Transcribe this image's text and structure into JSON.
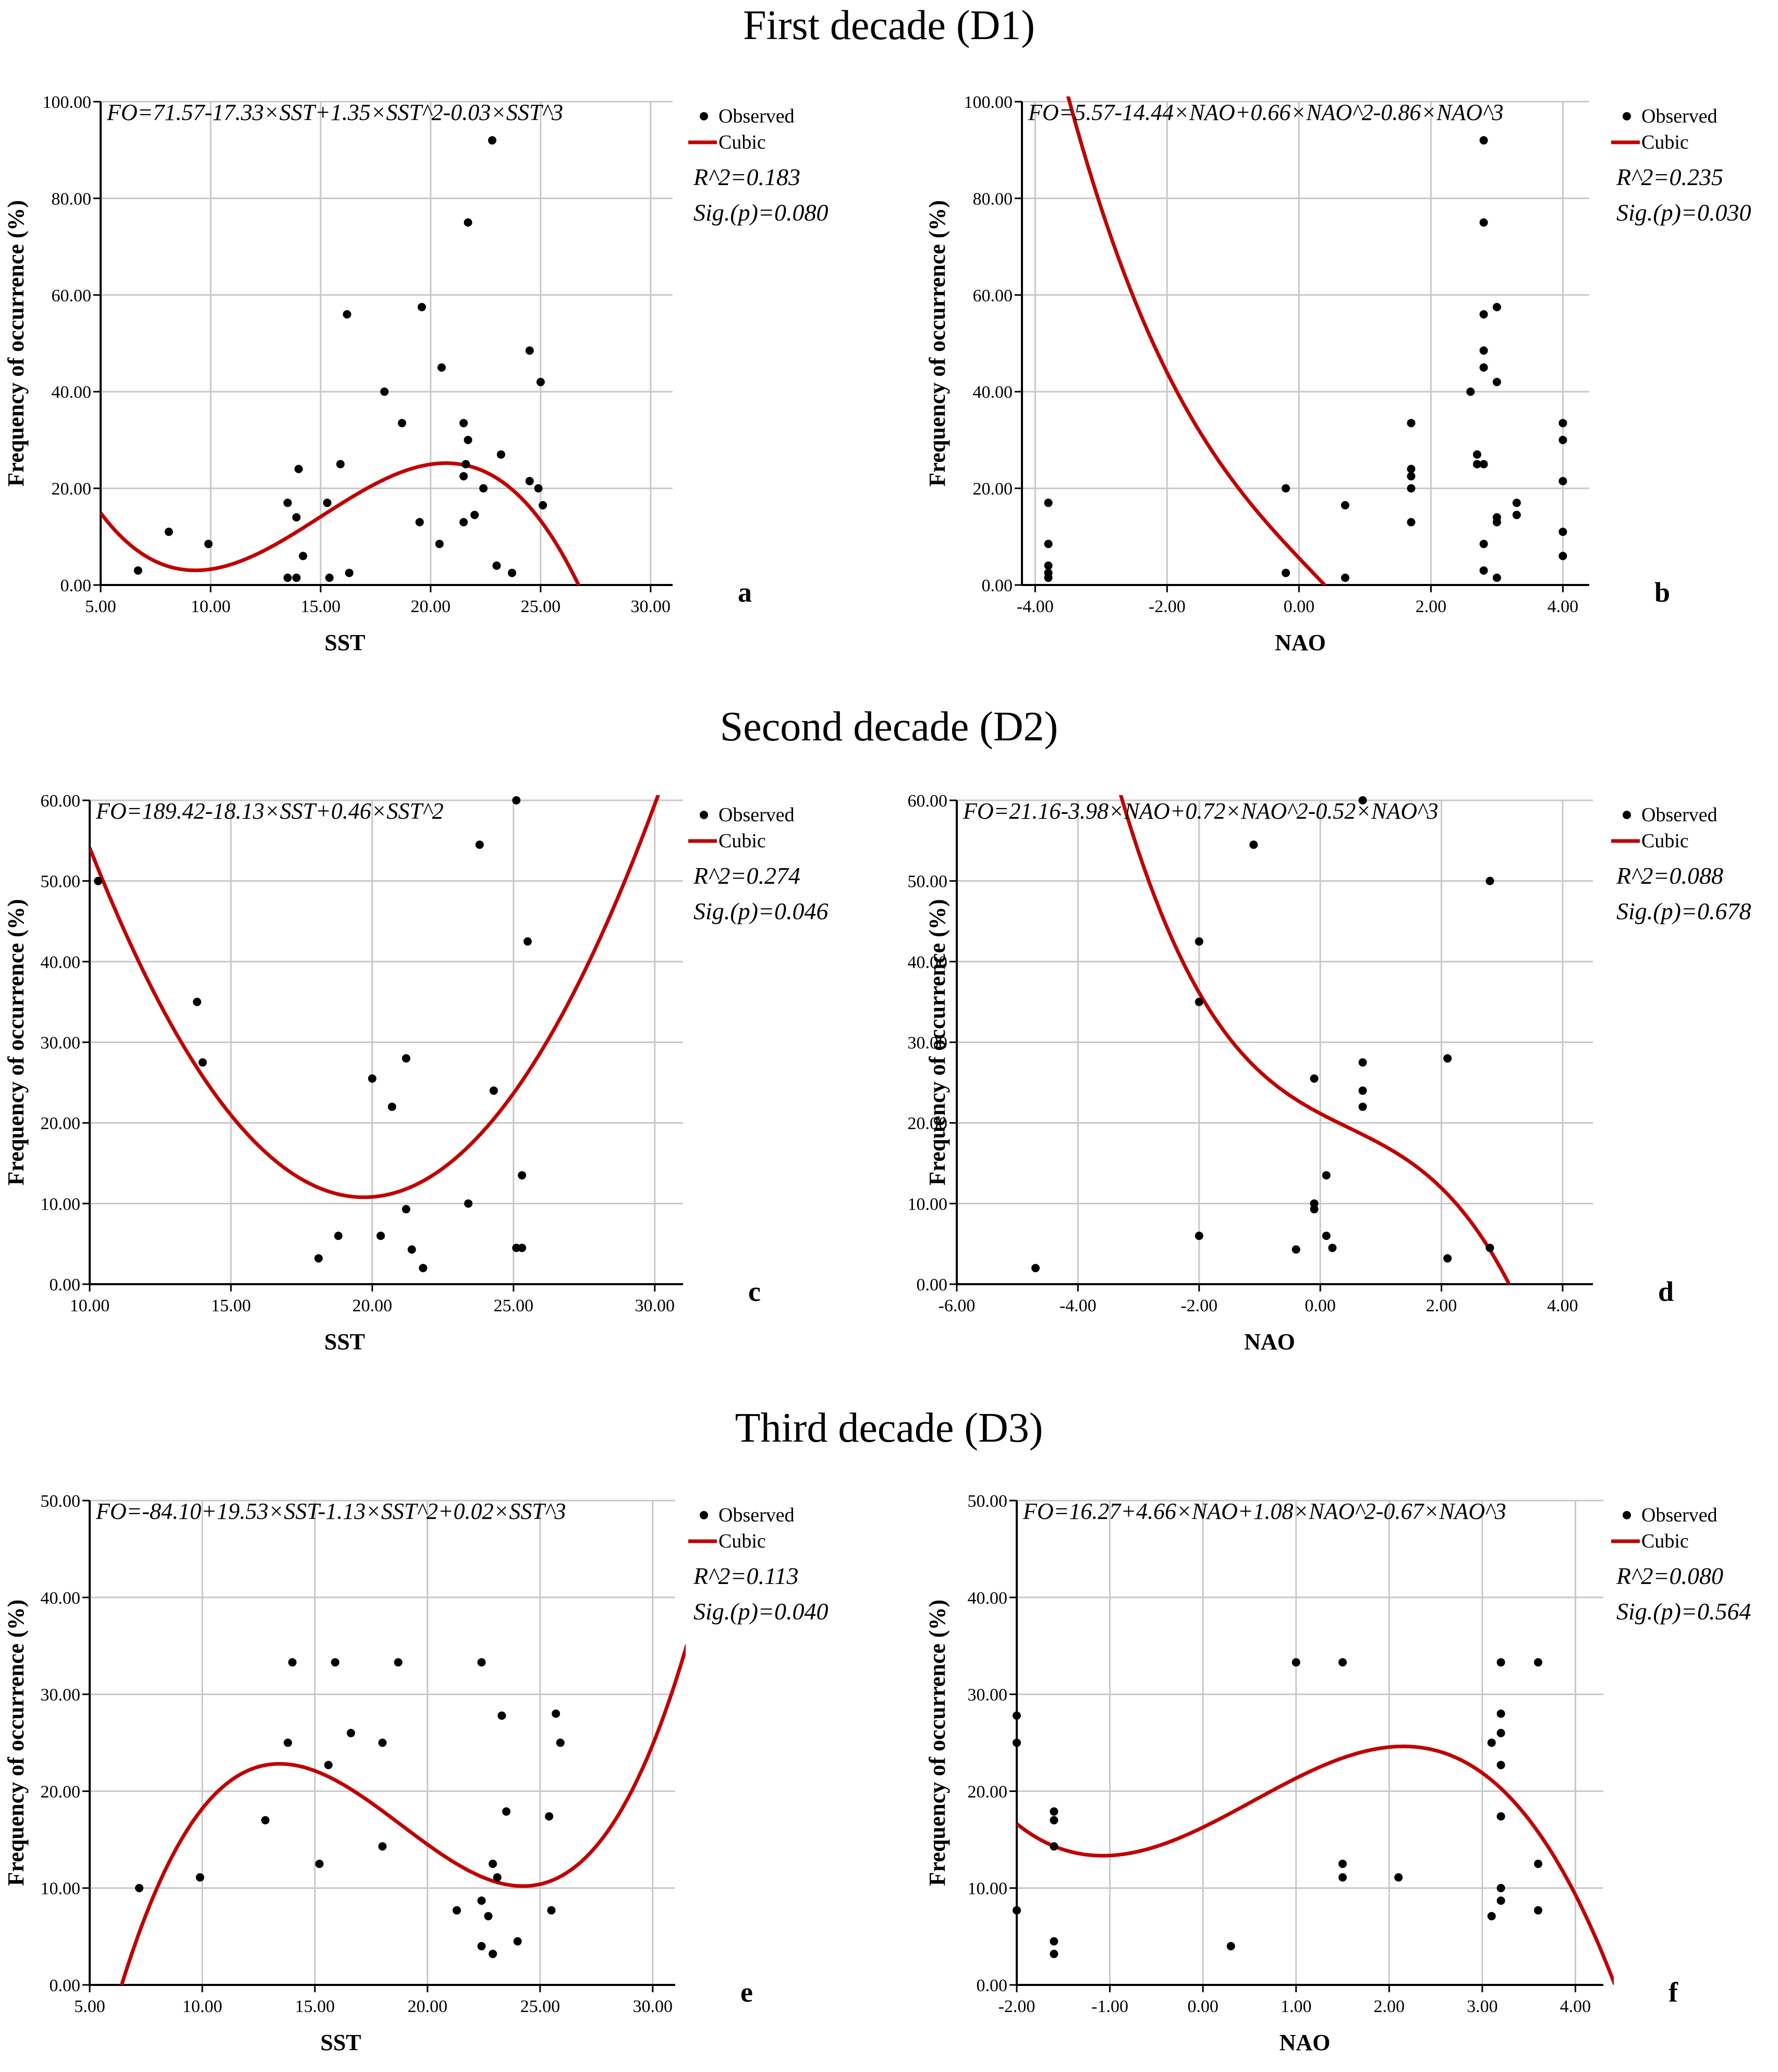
{
  "figure": {
    "decade_titles": [
      "First decade (D1)",
      "Second decade (D2)",
      "Third decade (D3)"
    ]
  },
  "legend": {
    "observed": "Observed",
    "cubic": "Cubic"
  },
  "y_axis_label": "Frequency of occurrence (%)",
  "colors": {
    "curve": "#c00000",
    "grid": "#c8c8c8",
    "axis": "#000000",
    "point": "#000000"
  },
  "chart_data": [
    {
      "panel": "a",
      "type": "scatter",
      "decade": "D1",
      "equation": "FO=71.57-17.33×SST+1.35×SST^2-0.03×SST^3",
      "r2": "R^2=0.183",
      "sig": "Sig.(p)=0.080",
      "xlabel": "SST",
      "ylabel": "Frequency of occurrence (%)",
      "xlim": [
        5,
        31
      ],
      "ylim": [
        0,
        100
      ],
      "xticks": [
        5,
        10,
        15,
        20,
        25,
        30
      ],
      "yticks": [
        0,
        20,
        40,
        60,
        80,
        100
      ],
      "xtick_labels": [
        "5.00",
        "10.00",
        "15.00",
        "20.00",
        "25.00",
        "30.00"
      ],
      "ytick_labels": [
        "0.00",
        "20.00",
        "40.00",
        "60.00",
        "80.00",
        "100.00"
      ],
      "fit": {
        "model": "cubic",
        "coef": [
          71.57,
          -17.33,
          1.35,
          -0.03
        ]
      },
      "points": [
        [
          6.7,
          3
        ],
        [
          8.1,
          11
        ],
        [
          9.9,
          8.5
        ],
        [
          13.5,
          1.5
        ],
        [
          13.5,
          17
        ],
        [
          13.9,
          1.5
        ],
        [
          13.9,
          14
        ],
        [
          14.0,
          24
        ],
        [
          14.2,
          6
        ],
        [
          15.3,
          17
        ],
        [
          15.4,
          1.5
        ],
        [
          15.9,
          25
        ],
        [
          16.2,
          56
        ],
        [
          16.3,
          2.5
        ],
        [
          17.9,
          40
        ],
        [
          18.7,
          33.5
        ],
        [
          19.5,
          13
        ],
        [
          19.6,
          57.5
        ],
        [
          20.4,
          8.5
        ],
        [
          20.5,
          45
        ],
        [
          21.5,
          33.5
        ],
        [
          21.5,
          22.5
        ],
        [
          21.5,
          13
        ],
        [
          21.6,
          25
        ],
        [
          21.7,
          30
        ],
        [
          21.7,
          75
        ],
        [
          22.0,
          14.5
        ],
        [
          22.4,
          20
        ],
        [
          22.8,
          92
        ],
        [
          23.0,
          4
        ],
        [
          23.2,
          27
        ],
        [
          23.7,
          2.5
        ],
        [
          24.5,
          48.5
        ],
        [
          24.5,
          21.5
        ],
        [
          24.9,
          20
        ],
        [
          25.0,
          42
        ],
        [
          25.1,
          16.5
        ]
      ]
    },
    {
      "panel": "b",
      "type": "scatter",
      "decade": "D1",
      "equation": "FO=5.57-14.44×NAO+0.66×NAO^2-0.86×NAO^3",
      "r2": "R^2=0.235",
      "sig": "Sig.(p)=0.030",
      "xlabel": "NAO",
      "ylabel": "Frequency of occurrence (%)",
      "xlim": [
        -4.2,
        4.4
      ],
      "ylim": [
        0,
        100
      ],
      "xticks": [
        -4,
        -2,
        0,
        2,
        4
      ],
      "yticks": [
        0,
        20,
        40,
        60,
        80,
        100
      ],
      "xtick_labels": [
        "-4.00",
        "-2.00",
        "0.00",
        "2.00",
        "4.00"
      ],
      "ytick_labels": [
        "0.00",
        "20.00",
        "40.00",
        "60.00",
        "80.00",
        "100.00"
      ],
      "fit": {
        "model": "cubic",
        "coef": [
          5.57,
          -14.44,
          0.66,
          -0.86
        ]
      },
      "points": [
        [
          -3.8,
          17
        ],
        [
          -3.8,
          8.5
        ],
        [
          -3.8,
          4
        ],
        [
          -3.8,
          2.5
        ],
        [
          -3.8,
          1.5
        ],
        [
          -0.2,
          20
        ],
        [
          -0.2,
          2.5
        ],
        [
          0.7,
          16.5
        ],
        [
          0.7,
          1.5
        ],
        [
          1.7,
          33.5
        ],
        [
          1.7,
          24
        ],
        [
          1.7,
          22.5
        ],
        [
          1.7,
          20
        ],
        [
          1.7,
          13
        ],
        [
          2.6,
          40
        ],
        [
          2.7,
          27
        ],
        [
          2.7,
          25
        ],
        [
          2.8,
          92
        ],
        [
          2.8,
          75
        ],
        [
          2.8,
          56
        ],
        [
          2.8,
          48.5
        ],
        [
          2.8,
          45
        ],
        [
          2.8,
          25
        ],
        [
          2.8,
          8.5
        ],
        [
          2.8,
          3
        ],
        [
          3.0,
          57.5
        ],
        [
          3.0,
          42
        ],
        [
          3.0,
          14
        ],
        [
          3.0,
          13
        ],
        [
          3.0,
          1.5
        ],
        [
          3.3,
          17
        ],
        [
          3.3,
          14.5
        ],
        [
          4.0,
          33.5
        ],
        [
          4.0,
          30
        ],
        [
          4.0,
          21.5
        ],
        [
          4.0,
          11
        ],
        [
          4.0,
          6
        ]
      ]
    },
    {
      "panel": "c",
      "type": "scatter",
      "decade": "D2",
      "equation": "FO=189.42-18.13×SST+0.46×SST^2",
      "r2": "R^2=0.274",
      "sig": "Sig.(p)=0.046",
      "xlabel": "SST",
      "ylabel": "Frequency of occurrence (%)",
      "xlim": [
        10,
        31
      ],
      "ylim": [
        0,
        60
      ],
      "xticks": [
        10,
        15,
        20,
        25,
        30
      ],
      "yticks": [
        0,
        10,
        20,
        30,
        40,
        50,
        60
      ],
      "xtick_labels": [
        "10.00",
        "15.00",
        "20.00",
        "25.00",
        "30.00"
      ],
      "ytick_labels": [
        "0.00",
        "10.00",
        "20.00",
        "30.00",
        "40.00",
        "50.00",
        "60.00"
      ],
      "fit": {
        "model": "quadratic",
        "coef": [
          189.42,
          -18.13,
          0.46
        ]
      },
      "points": [
        [
          10.3,
          50
        ],
        [
          13.8,
          35
        ],
        [
          14.0,
          27.5
        ],
        [
          18.1,
          3.2
        ],
        [
          18.8,
          6
        ],
        [
          20.0,
          25.5
        ],
        [
          20.3,
          6
        ],
        [
          20.7,
          22
        ],
        [
          21.2,
          28
        ],
        [
          21.2,
          9.3
        ],
        [
          21.4,
          4.3
        ],
        [
          21.8,
          2
        ],
        [
          23.4,
          10
        ],
        [
          23.8,
          54.5
        ],
        [
          24.3,
          24
        ],
        [
          25.1,
          60
        ],
        [
          25.1,
          4.5
        ],
        [
          25.3,
          13.5
        ],
        [
          25.3,
          4.5
        ],
        [
          25.5,
          42.5
        ]
      ]
    },
    {
      "panel": "d",
      "type": "scatter",
      "decade": "D2",
      "equation": "FO=21.16-3.98×NAO+0.72×NAO^2-0.52×NAO^3",
      "r2": "R^2=0.088",
      "sig": "Sig.(p)=0.678",
      "xlabel": "NAO",
      "ylabel": "Frequency of occurrence (%)",
      "xlim": [
        -6,
        4.5
      ],
      "ylim": [
        0,
        60
      ],
      "xticks": [
        -6,
        -4,
        -2,
        0,
        2,
        4
      ],
      "yticks": [
        0,
        10,
        20,
        30,
        40,
        50,
        60
      ],
      "xtick_labels": [
        "-6.00",
        "-4.00",
        "-2.00",
        "0.00",
        "2.00",
        "4.00"
      ],
      "ytick_labels": [
        "0.00",
        "10.00",
        "20.00",
        "30.00",
        "40.00",
        "50.00",
        "60.00"
      ],
      "fit": {
        "model": "cubic",
        "coef": [
          21.16,
          -3.98,
          0.72,
          -0.52
        ]
      },
      "points": [
        [
          -4.7,
          2
        ],
        [
          -2.0,
          42.5
        ],
        [
          -2.0,
          35
        ],
        [
          -2.0,
          6
        ],
        [
          -1.1,
          54.5
        ],
        [
          -0.4,
          4.3
        ],
        [
          -0.1,
          25.5
        ],
        [
          -0.1,
          10
        ],
        [
          -0.1,
          9.3
        ],
        [
          0.1,
          13.5
        ],
        [
          0.1,
          6
        ],
        [
          0.2,
          4.5
        ],
        [
          0.7,
          60
        ],
        [
          0.7,
          27.5
        ],
        [
          0.7,
          24
        ],
        [
          0.7,
          22
        ],
        [
          2.1,
          28
        ],
        [
          2.1,
          3.2
        ],
        [
          2.8,
          50
        ],
        [
          2.8,
          4.5
        ]
      ]
    },
    {
      "panel": "e",
      "type": "scatter",
      "decade": "D3",
      "equation": "FO=-84.10+19.53×SST-1.13×SST^2+0.02×SST^3",
      "r2": "R^2=0.113",
      "sig": "Sig.(p)=0.040",
      "xlabel": "SST",
      "ylabel": "Frequency of occurrence (%)",
      "xlim": [
        5,
        31
      ],
      "ylim": [
        0,
        50
      ],
      "xticks": [
        5,
        10,
        15,
        20,
        25,
        30
      ],
      "yticks": [
        0,
        10,
        20,
        30,
        40,
        50
      ],
      "xtick_labels": [
        "5.00",
        "10.00",
        "15.00",
        "20.00",
        "25.00",
        "30.00"
      ],
      "ytick_labels": [
        "0.00",
        "10.00",
        "20.00",
        "30.00",
        "40.00",
        "50.00"
      ],
      "fit": {
        "model": "cubic",
        "coef": [
          -84.1,
          19.53,
          -1.13,
          0.02
        ]
      },
      "points": [
        [
          7.2,
          10
        ],
        [
          9.9,
          11.1
        ],
        [
          12.8,
          17
        ],
        [
          13.8,
          25
        ],
        [
          14.0,
          33.3
        ],
        [
          15.2,
          12.5
        ],
        [
          15.6,
          22.7
        ],
        [
          15.9,
          33.3
        ],
        [
          16.6,
          26
        ],
        [
          18.0,
          25
        ],
        [
          18.0,
          14.3
        ],
        [
          18.7,
          33.3
        ],
        [
          21.3,
          7.7
        ],
        [
          22.4,
          33.3
        ],
        [
          22.4,
          8.7
        ],
        [
          22.4,
          4
        ],
        [
          22.7,
          7.1
        ],
        [
          22.9,
          12.5
        ],
        [
          22.9,
          3.2
        ],
        [
          23.1,
          11.1
        ],
        [
          23.3,
          27.8
        ],
        [
          23.5,
          17.9
        ],
        [
          24.0,
          4.5
        ],
        [
          25.4,
          17.4
        ],
        [
          25.5,
          7.7
        ],
        [
          25.7,
          28
        ],
        [
          25.9,
          25
        ]
      ]
    },
    {
      "panel": "f",
      "type": "scatter",
      "decade": "D3",
      "equation": "FO=16.27+4.66×NAO+1.08×NAO^2-0.67×NAO^3",
      "r2": "R^2=0.080",
      "sig": "Sig.(p)=0.564",
      "xlabel": "NAO",
      "ylabel": "Frequency of occurrence (%)",
      "xlim": [
        -2,
        4.3
      ],
      "ylim": [
        0,
        50
      ],
      "xticks": [
        -2,
        -1,
        0,
        1,
        2,
        3,
        4
      ],
      "yticks": [
        0,
        10,
        20,
        30,
        40,
        50
      ],
      "xtick_labels": [
        "-2.00",
        "-1.00",
        "0.00",
        "1.00",
        "2.00",
        "3.00",
        "4.00"
      ],
      "ytick_labels": [
        "0.00",
        "10.00",
        "20.00",
        "30.00",
        "40.00",
        "50.00"
      ],
      "fit": {
        "model": "cubic",
        "coef": [
          16.27,
          4.66,
          1.08,
          -0.67
        ]
      },
      "points": [
        [
          -2.0,
          27.8
        ],
        [
          -2.0,
          25
        ],
        [
          -2.0,
          7.7
        ],
        [
          -1.6,
          17.9
        ],
        [
          -1.6,
          17
        ],
        [
          -1.6,
          14.3
        ],
        [
          -1.6,
          4.5
        ],
        [
          -1.6,
          3.2
        ],
        [
          0.3,
          4
        ],
        [
          1.0,
          33.3
        ],
        [
          1.5,
          33.3
        ],
        [
          1.5,
          12.5
        ],
        [
          1.5,
          11.1
        ],
        [
          2.1,
          11.1
        ],
        [
          3.1,
          25
        ],
        [
          3.1,
          7.1
        ],
        [
          3.2,
          33.3
        ],
        [
          3.2,
          28
        ],
        [
          3.2,
          26
        ],
        [
          3.2,
          22.7
        ],
        [
          3.2,
          17.4
        ],
        [
          3.2,
          10
        ],
        [
          3.2,
          8.7
        ],
        [
          3.6,
          33.3
        ],
        [
          3.6,
          12.5
        ],
        [
          3.6,
          7.7
        ]
      ]
    }
  ]
}
